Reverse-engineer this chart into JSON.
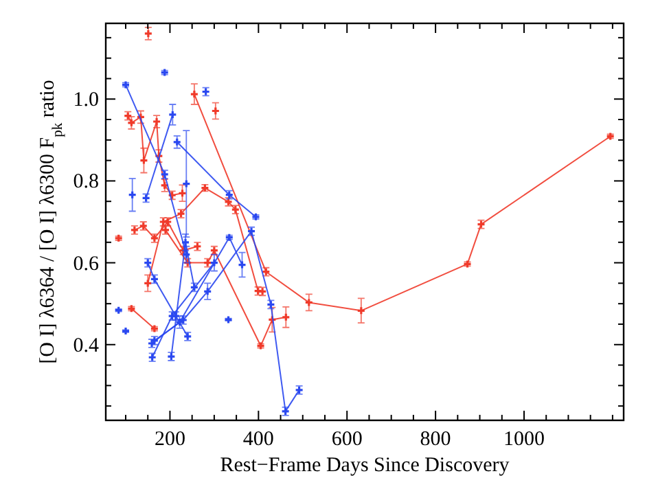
{
  "chart_data": {
    "type": "line",
    "xlabel": "Rest−Frame Days Since Discovery",
    "ylabel": "[O I] λ6364 / [O I] λ6300 F$_{pk}$ ratio",
    "xlim": [
      55,
      1225
    ],
    "ylim": [
      0.215,
      1.185
    ],
    "xticks": [
      {
        "value": 100,
        "label": null
      },
      {
        "value": 150,
        "label": null
      },
      200,
      {
        "value": 250,
        "label": null
      },
      {
        "value": 300,
        "label": null
      },
      {
        "value": 350,
        "label": null
      },
      400,
      {
        "value": 450,
        "label": null
      },
      {
        "value": 500,
        "label": null
      },
      {
        "value": 550,
        "label": null
      },
      600,
      {
        "value": 650,
        "label": null
      },
      {
        "value": 700,
        "label": null
      },
      {
        "value": 750,
        "label": null
      },
      800,
      {
        "value": 850,
        "label": null
      },
      {
        "value": 900,
        "label": null
      },
      {
        "value": 950,
        "label": null
      },
      1000,
      {
        "value": 1050,
        "label": null
      },
      {
        "value": 1100,
        "label": null
      },
      {
        "value": 1150,
        "label": null
      },
      {
        "value": 1200,
        "label": null
      }
    ],
    "yticks": [
      {
        "value": 0.25,
        "label": null
      },
      {
        "value": 0.3,
        "label": null
      },
      {
        "value": 0.35,
        "label": null
      },
      0.4,
      {
        "value": 0.45,
        "label": null
      },
      {
        "value": 0.5,
        "label": null
      },
      {
        "value": 0.55,
        "label": null
      },
      0.6,
      {
        "value": 0.65,
        "label": null
      },
      {
        "value": 0.7,
        "label": null
      },
      {
        "value": 0.75,
        "label": null
      },
      0.8,
      {
        "value": 0.85,
        "label": null
      },
      {
        "value": 0.9,
        "label": null
      },
      {
        "value": 0.95,
        "label": null
      },
      {
        "value": 1.0,
        "label": "1.0"
      },
      {
        "value": 1.05,
        "label": null
      },
      {
        "value": 1.1,
        "label": null
      },
      {
        "value": 1.15,
        "label": null
      }
    ],
    "marker": "cross",
    "line_style": "solid",
    "grid": false,
    "series": [
      {
        "color": "#f03a2a",
        "x": [
          255,
          417,
          514,
          632,
          872,
          903,
          1195
        ],
        "values": [
          1.012,
          0.578,
          0.503,
          0.483,
          0.597,
          0.694,
          0.909
        ],
        "errors": [
          0.025,
          0.01,
          0.02,
          0.03,
          0.005,
          0.01,
          0.005
        ]
      },
      {
        "color": "#f03a2a",
        "x": [
          105,
          113,
          134,
          141,
          170,
          175,
          188,
          205,
          228
        ],
        "values": [
          0.959,
          0.942,
          0.956,
          0.85,
          0.945,
          0.861,
          0.789,
          0.765,
          0.77
        ],
        "errors": [
          0.01,
          0.015,
          0.015,
          0.03,
          0.015,
          0.015,
          0.015,
          0.01,
          0.02
        ]
      },
      {
        "color": "#f03a2a",
        "x": [
          113,
          165
        ],
        "values": [
          0.488,
          0.439
        ],
        "errors": [
          0.005,
          0.005
        ]
      },
      {
        "color": "#f03a2a",
        "x": [
          120,
          140,
          165,
          195,
          230,
          262
        ],
        "values": [
          0.68,
          0.69,
          0.66,
          0.7,
          0.63,
          0.64
        ],
        "errors": [
          0.01,
          0.01,
          0.01,
          0.01,
          0.01,
          0.01
        ]
      },
      {
        "color": "#f03a2a",
        "x": [
          150,
          185,
          225,
          279,
          332,
          348,
          399,
          409
        ],
        "values": [
          0.55,
          0.7,
          0.72,
          0.783,
          0.749,
          0.73,
          0.531,
          0.53
        ],
        "errors": [
          0.02,
          0.01,
          0.01,
          0.008,
          0.01,
          0.01,
          0.01,
          0.01
        ]
      },
      {
        "color": "#f03a2a",
        "x": [
          190,
          240,
          285,
          300,
          405,
          431,
          462
        ],
        "values": [
          0.68,
          0.6,
          0.6,
          0.63,
          0.397,
          0.461,
          0.467
        ],
        "errors": [
          0.01,
          0.01,
          0.01,
          0.01,
          0.005,
          0.03,
          0.025
        ]
      },
      {
        "color": "#f03a2a",
        "x": [
          151
        ],
        "values": [
          1.16
        ],
        "errors": [
          0.015
        ]
      },
      {
        "color": "#f03a2a",
        "x": [
          303
        ],
        "values": [
          0.971
        ],
        "errors": [
          0.02
        ]
      },
      {
        "color": "#f03a2a",
        "x": [
          84
        ],
        "values": [
          0.66
        ],
        "errors": [
          0.005
        ]
      },
      {
        "color": "#2a48f0",
        "x": [
          84
        ],
        "values": [
          0.484
        ],
        "errors": [
          0.003
        ]
      },
      {
        "color": "#2a48f0",
        "x": [
          100
        ],
        "values": [
          0.433
        ],
        "errors": [
          0.003
        ]
      },
      {
        "color": "#2a48f0",
        "x": [
          188
        ],
        "values": [
          1.065
        ],
        "errors": [
          0.005
        ]
      },
      {
        "color": "#2a48f0",
        "x": [
          281
        ],
        "values": [
          1.018
        ],
        "errors": [
          0.01
        ]
      },
      {
        "color": "#2a48f0",
        "x": [
          115
        ],
        "values": [
          0.766
        ],
        "errors": [
          0.04
        ]
      },
      {
        "color": "#2a48f0",
        "x": [
          332
        ],
        "values": [
          0.461
        ],
        "errors": [
          0.003
        ]
      },
      {
        "color": "#2a48f0",
        "x": [
          237
        ],
        "values": [
          0.793
        ],
        "errors": [
          0.13
        ]
      },
      {
        "color": "#2a48f0",
        "x": [
          100,
          188,
          237
        ],
        "values": [
          1.035,
          0.816,
          0.62
        ],
        "errors": [
          0.005,
          0.01,
          0.02
        ]
      },
      {
        "color": "#2a48f0",
        "x": [
          146,
          206
        ],
        "values": [
          0.758,
          0.962
        ],
        "errors": [
          0.01,
          0.025
        ]
      },
      {
        "color": "#2a48f0",
        "x": [
          216,
          334,
          394
        ],
        "values": [
          0.895,
          0.766,
          0.712
        ],
        "errors": [
          0.015,
          0.01,
          0.005
        ]
      },
      {
        "color": "#2a48f0",
        "x": [
          160,
          205,
          300
        ],
        "values": [
          0.369,
          0.47,
          0.6
        ],
        "errors": [
          0.01,
          0.01,
          0.02
        ]
      },
      {
        "color": "#2a48f0",
        "x": [
          159,
          222,
          334,
          363
        ],
        "values": [
          0.403,
          0.455,
          0.662,
          0.595
        ],
        "errors": [
          0.01,
          0.015,
          0.005,
          0.03
        ]
      },
      {
        "color": "#2a48f0",
        "x": [
          165,
          230,
          285,
          384,
          428,
          461,
          492
        ],
        "values": [
          0.41,
          0.46,
          0.53,
          0.677,
          0.498,
          0.237,
          0.289
        ],
        "errors": [
          0.01,
          0.01,
          0.02,
          0.01,
          0.01,
          0.01,
          0.01
        ]
      },
      {
        "color": "#2a48f0",
        "x": [
          203,
          235,
          255
        ],
        "values": [
          0.371,
          0.65,
          0.54
        ],
        "errors": [
          0.01,
          0.02,
          0.01
        ]
      },
      {
        "color": "#2a48f0",
        "x": [
          150,
          165,
          213,
          240
        ],
        "values": [
          0.6,
          0.56,
          0.47,
          0.42
        ],
        "errors": [
          0.01,
          0.01,
          0.01,
          0.01
        ]
      }
    ]
  }
}
